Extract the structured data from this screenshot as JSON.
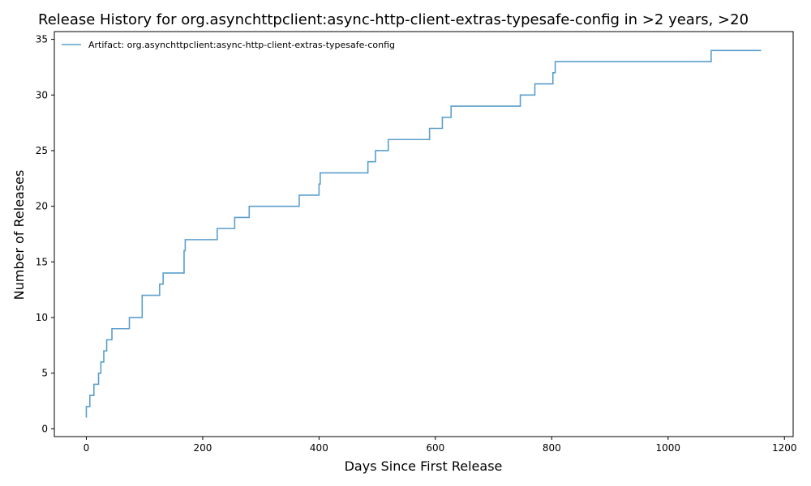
{
  "chart_data": {
    "type": "line",
    "step": "post",
    "title": "Release History for org.asynchttpclient:async-http-client-extras-typesafe-config in >2 years, >20",
    "xlabel": "Days Since First Release",
    "ylabel": "Number of Releases",
    "xlim": [
      -55,
      1215
    ],
    "ylim": [
      -0.7,
      35.7
    ],
    "xticks": [
      0,
      200,
      400,
      600,
      800,
      1000,
      1200
    ],
    "yticks": [
      0,
      5,
      10,
      15,
      20,
      25,
      30,
      35
    ],
    "grid": false,
    "legend": "top-left",
    "series": [
      {
        "name": "Artifact: org.asynchttpclient:async-http-client-extras-typesafe-config",
        "color": "#5b9fcc",
        "x": [
          0,
          0,
          6,
          13,
          21,
          25,
          30,
          35,
          44,
          74,
          96,
          126,
          132,
          168,
          170,
          225,
          255,
          280,
          366,
          400,
          402,
          484,
          497,
          519,
          590,
          612,
          627,
          746,
          771,
          802,
          806,
          1074,
          1160
        ],
        "y": [
          1,
          2,
          3,
          4,
          5,
          6,
          7,
          8,
          9,
          10,
          12,
          13,
          14,
          16,
          17,
          18,
          19,
          20,
          21,
          22,
          23,
          24,
          25,
          26,
          27,
          28,
          29,
          30,
          31,
          32,
          33,
          34,
          34
        ]
      }
    ]
  }
}
